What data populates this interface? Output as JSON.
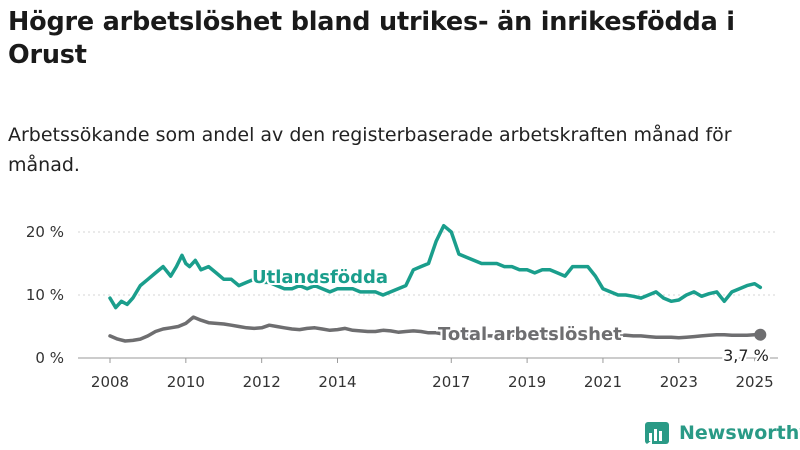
{
  "title": "Högre arbetslöshet bland utrikes- än inrikesfödda i Orust",
  "subtitle": "Arbetssökande som andel av den registerbaserade arbetskraften månad för månad.",
  "brand": "Newsworthy",
  "colors": {
    "utlandsfodda": "#1a9e8c",
    "total": "#6e6e70",
    "grid": "#d6d6d6",
    "brand": "#2a9a86"
  },
  "chart_data": {
    "type": "line",
    "x_unit": "year (decimal)",
    "xlim": [
      2008,
      2025.3
    ],
    "ylim": [
      0,
      20
    ],
    "yticks": [
      {
        "value": 0,
        "label": "0 %"
      },
      {
        "value": 10,
        "label": "10 %"
      },
      {
        "value": 20,
        "label": "20 %"
      }
    ],
    "xticks": [
      {
        "value": 2008,
        "label": "2008"
      },
      {
        "value": 2010,
        "label": "2010"
      },
      {
        "value": 2012,
        "label": "2012"
      },
      {
        "value": 2014,
        "label": "2014"
      },
      {
        "value": 2017,
        "label": "2017"
      },
      {
        "value": 2019,
        "label": "2019"
      },
      {
        "value": 2021,
        "label": "2021"
      },
      {
        "value": 2023,
        "label": "2023"
      },
      {
        "value": 2025,
        "label": "2025"
      }
    ],
    "end_label": "3,7 %",
    "series": [
      {
        "name": "Utlandsfödda",
        "key": "utlandsfodda",
        "x": [
          2008.0,
          2008.15,
          2008.3,
          2008.45,
          2008.6,
          2008.8,
          2009.0,
          2009.2,
          2009.4,
          2009.6,
          2009.75,
          2009.9,
          2010.0,
          2010.1,
          2010.25,
          2010.4,
          2010.6,
          2010.8,
          2011.0,
          2011.2,
          2011.4,
          2011.6,
          2011.8,
          2012.0,
          2012.2,
          2012.4,
          2012.6,
          2012.8,
          2013.0,
          2013.2,
          2013.4,
          2013.6,
          2013.8,
          2014.0,
          2014.2,
          2014.4,
          2014.6,
          2014.8,
          2015.0,
          2015.2,
          2015.4,
          2015.6,
          2015.8,
          2016.0,
          2016.2,
          2016.4,
          2016.6,
          2016.8,
          2017.0,
          2017.2,
          2017.4,
          2017.6,
          2017.8,
          2018.0,
          2018.2,
          2018.4,
          2018.6,
          2018.8,
          2019.0,
          2019.2,
          2019.4,
          2019.6,
          2019.8,
          2020.0,
          2020.2,
          2020.4,
          2020.6,
          2020.8,
          2021.0,
          2021.2,
          2021.4,
          2021.6,
          2021.8,
          2022.0,
          2022.2,
          2022.4,
          2022.6,
          2022.8,
          2023.0,
          2023.2,
          2023.4,
          2023.6,
          2023.8,
          2024.0,
          2024.2,
          2024.4,
          2024.6,
          2024.8,
          2025.0,
          2025.15
        ],
        "y": [
          9.5,
          8.0,
          9.0,
          8.5,
          9.5,
          11.5,
          12.5,
          13.5,
          14.5,
          13.0,
          14.5,
          16.3,
          15.0,
          14.5,
          15.5,
          14.0,
          14.5,
          13.5,
          12.5,
          12.5,
          11.5,
          12.0,
          12.5,
          12.0,
          12.0,
          11.5,
          11.0,
          11.0,
          11.5,
          11.0,
          11.5,
          11.0,
          10.5,
          11.0,
          11.0,
          11.0,
          10.5,
          10.5,
          10.5,
          10.0,
          10.5,
          11.0,
          11.5,
          14.0,
          14.5,
          15.0,
          18.5,
          21.0,
          20.0,
          16.5,
          16.0,
          15.5,
          15.0,
          15.0,
          15.0,
          14.5,
          14.5,
          14.0,
          14.0,
          13.5,
          14.0,
          14.0,
          13.5,
          13.0,
          14.5,
          14.5,
          14.5,
          13.0,
          11.0,
          10.5,
          10.0,
          10.0,
          9.8,
          9.5,
          10.0,
          10.5,
          9.5,
          9.0,
          9.2,
          10.0,
          10.5,
          9.8,
          10.2,
          10.5,
          9.0,
          10.5,
          11.0,
          11.5,
          11.8,
          11.2
        ]
      },
      {
        "name": "Total arbetslöshet",
        "key": "total",
        "x": [
          2008.0,
          2008.2,
          2008.4,
          2008.6,
          2008.8,
          2009.0,
          2009.2,
          2009.4,
          2009.6,
          2009.8,
          2010.0,
          2010.2,
          2010.4,
          2010.6,
          2010.8,
          2011.0,
          2011.2,
          2011.4,
          2011.6,
          2011.8,
          2012.0,
          2012.2,
          2012.4,
          2012.6,
          2012.8,
          2013.0,
          2013.2,
          2013.4,
          2013.6,
          2013.8,
          2014.0,
          2014.2,
          2014.4,
          2014.6,
          2014.8,
          2015.0,
          2015.2,
          2015.4,
          2015.6,
          2015.8,
          2016.0,
          2016.2,
          2016.4,
          2016.6,
          2016.8,
          2017.0,
          2017.2,
          2017.4,
          2017.6,
          2017.8,
          2018.0,
          2018.2,
          2018.4,
          2018.6,
          2018.8,
          2019.0,
          2019.2,
          2019.4,
          2019.6,
          2019.8,
          2020.0,
          2020.2,
          2020.4,
          2020.6,
          2020.8,
          2021.0,
          2021.2,
          2021.4,
          2021.6,
          2021.8,
          2022.0,
          2022.2,
          2022.4,
          2022.6,
          2022.8,
          2023.0,
          2023.2,
          2023.4,
          2023.6,
          2023.8,
          2024.0,
          2024.2,
          2024.4,
          2024.6,
          2024.8,
          2025.0,
          2025.15
        ],
        "y": [
          3.5,
          3.0,
          2.7,
          2.8,
          3.0,
          3.5,
          4.2,
          4.6,
          4.8,
          5.0,
          5.5,
          6.5,
          6.0,
          5.6,
          5.5,
          5.4,
          5.2,
          5.0,
          4.8,
          4.7,
          4.8,
          5.2,
          5.0,
          4.8,
          4.6,
          4.5,
          4.7,
          4.8,
          4.6,
          4.4,
          4.5,
          4.7,
          4.4,
          4.3,
          4.2,
          4.2,
          4.4,
          4.3,
          4.1,
          4.2,
          4.3,
          4.2,
          4.0,
          4.0,
          3.8,
          3.7,
          3.7,
          3.6,
          3.6,
          3.5,
          3.5,
          3.5,
          3.5,
          3.6,
          3.7,
          3.6,
          3.6,
          3.6,
          3.7,
          3.8,
          3.8,
          3.9,
          4.0,
          4.0,
          3.9,
          3.8,
          3.7,
          3.6,
          3.6,
          3.5,
          3.5,
          3.4,
          3.3,
          3.3,
          3.3,
          3.2,
          3.3,
          3.4,
          3.5,
          3.6,
          3.7,
          3.7,
          3.6,
          3.6,
          3.6,
          3.7,
          3.7
        ]
      }
    ]
  }
}
